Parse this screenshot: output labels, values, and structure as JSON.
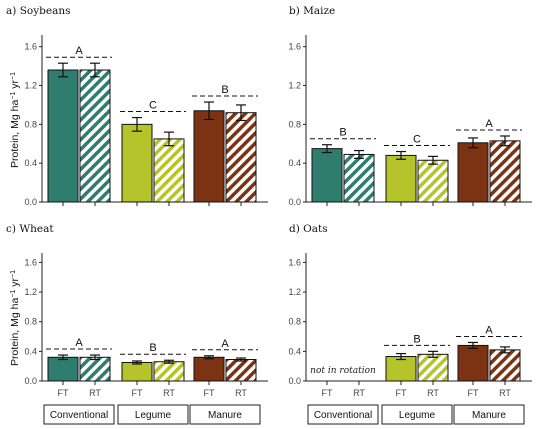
{
  "chart_data": {
    "type": "bar",
    "ylabel": {
      "base": "Protein, Mg ha",
      "sup1": "−1",
      "mid": " yr",
      "sup2": "−1"
    },
    "ylim": [
      0,
      1.7
    ],
    "yticks": [
      0,
      0.4,
      0.8,
      1.2,
      1.6
    ],
    "ytick_labels": [
      "0.0",
      "0.4",
      "0.8",
      "1.2",
      "1.6"
    ],
    "groups": [
      "Conventional",
      "Legume",
      "Manure"
    ],
    "tillage": [
      "FT",
      "RT"
    ],
    "colors": {
      "Conventional": "#2e7d6e",
      "Legume": "#b5c42a",
      "Manure": "#7b3313"
    },
    "legend": "none",
    "grid": false,
    "panels": [
      {
        "title": "a) Soybeans",
        "values": [
          [
            1.36,
            1.36
          ],
          [
            0.8,
            0.65
          ],
          [
            0.94,
            0.92
          ]
        ],
        "errors": [
          [
            0.07,
            0.07
          ],
          [
            0.07,
            0.07
          ],
          [
            0.09,
            0.08
          ]
        ],
        "sig": [
          "A",
          "C",
          "B"
        ],
        "note": ""
      },
      {
        "title": "b) Maize",
        "values": [
          [
            0.55,
            0.49
          ],
          [
            0.48,
            0.43
          ],
          [
            0.61,
            0.63
          ]
        ],
        "errors": [
          [
            0.04,
            0.04
          ],
          [
            0.04,
            0.04
          ],
          [
            0.05,
            0.05
          ]
        ],
        "sig": [
          "B",
          "C",
          "A"
        ],
        "note": ""
      },
      {
        "title": "c) Wheat",
        "values": [
          [
            0.32,
            0.32
          ],
          [
            0.25,
            0.26
          ],
          [
            0.32,
            0.29
          ]
        ],
        "errors": [
          [
            0.03,
            0.03
          ],
          [
            0.02,
            0.02
          ],
          [
            0.02,
            0.02
          ]
        ],
        "sig": [
          "A",
          "B",
          "A"
        ],
        "note": ""
      },
      {
        "title": "d) Oats",
        "values": [
          [
            null,
            null
          ],
          [
            0.33,
            0.36
          ],
          [
            0.48,
            0.42
          ]
        ],
        "errors": [
          [
            null,
            null
          ],
          [
            0.04,
            0.04
          ],
          [
            0.04,
            0.04
          ]
        ],
        "sig": [
          null,
          "B",
          "A"
        ],
        "note": "not in rotation"
      }
    ]
  }
}
